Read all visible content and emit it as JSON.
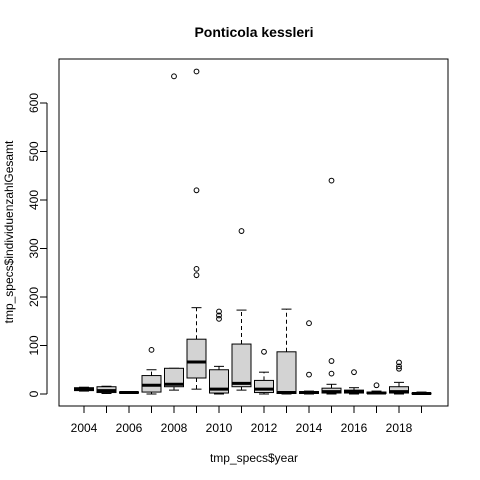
{
  "chart_data": {
    "type": "boxplot",
    "title": "Ponticola kessleri",
    "xlabel": "tmp_specs$year",
    "ylabel": "tmp_specs$individuenzahlGesamt",
    "ylim": [
      -20,
      690
    ],
    "y_ticks": [
      0,
      100,
      200,
      300,
      400,
      500,
      600
    ],
    "x_tick_labels": [
      "2004",
      "2006",
      "2008",
      "2010",
      "2012",
      "2014",
      "2016",
      "2018"
    ],
    "grid": false,
    "legend": "none",
    "colors": {
      "box_fill": "#d3d3d3",
      "stroke": "#000000"
    },
    "boxes": [
      {
        "year": "2004",
        "min": 6,
        "q1": 7,
        "median": 10,
        "q3": 13,
        "max": 14,
        "outliers": []
      },
      {
        "year": "2005",
        "min": 1,
        "q1": 3,
        "median": 7,
        "q3": 15,
        "max": 16,
        "outliers": []
      },
      {
        "year": "2006",
        "min": 1,
        "q1": 2,
        "median": 3,
        "q3": 4,
        "max": 5,
        "outliers": []
      },
      {
        "year": "2007",
        "min": 0,
        "q1": 4,
        "median": 18,
        "q3": 38,
        "max": 50,
        "outliers": [
          91
        ]
      },
      {
        "year": "2008",
        "min": 8,
        "q1": 15,
        "median": 20,
        "q3": 53,
        "max": 53,
        "outliers": [
          655
        ]
      },
      {
        "year": "2009",
        "min": 10,
        "q1": 33,
        "median": 66,
        "q3": 113,
        "max": 178,
        "outliers": [
          245,
          258,
          420,
          665
        ]
      },
      {
        "year": "2010",
        "min": 0,
        "q1": 2,
        "median": 10,
        "q3": 50,
        "max": 57,
        "outliers": [
          155,
          162,
          170
        ]
      },
      {
        "year": "2011",
        "min": 8,
        "q1": 15,
        "median": 22,
        "q3": 103,
        "max": 173,
        "outliers": [
          336
        ]
      },
      {
        "year": "2012",
        "min": 0,
        "q1": 3,
        "median": 10,
        "q3": 28,
        "max": 45,
        "outliers": [
          87
        ]
      },
      {
        "year": "2013",
        "min": 0,
        "q1": 1,
        "median": 3,
        "q3": 87,
        "max": 175,
        "outliers": []
      },
      {
        "year": "2014",
        "min": 0,
        "q1": 1,
        "median": 3,
        "q3": 5,
        "max": 6,
        "outliers": [
          40,
          146
        ]
      },
      {
        "year": "2015",
        "min": 0,
        "q1": 2,
        "median": 5,
        "q3": 12,
        "max": 20,
        "outliers": [
          42,
          68,
          440
        ]
      },
      {
        "year": "2016",
        "min": 0,
        "q1": 2,
        "median": 4,
        "q3": 8,
        "max": 13,
        "outliers": [
          45
        ]
      },
      {
        "year": "2017",
        "min": 0,
        "q1": 1,
        "median": 2,
        "q3": 4,
        "max": 6,
        "outliers": [
          18
        ]
      },
      {
        "year": "2018",
        "min": 0,
        "q1": 2,
        "median": 5,
        "q3": 15,
        "max": 24,
        "outliers": [
          52,
          57,
          65
        ]
      },
      {
        "year": "2019",
        "min": 0,
        "q1": 0,
        "median": 1,
        "q3": 2,
        "max": 4,
        "outliers": []
      }
    ]
  }
}
